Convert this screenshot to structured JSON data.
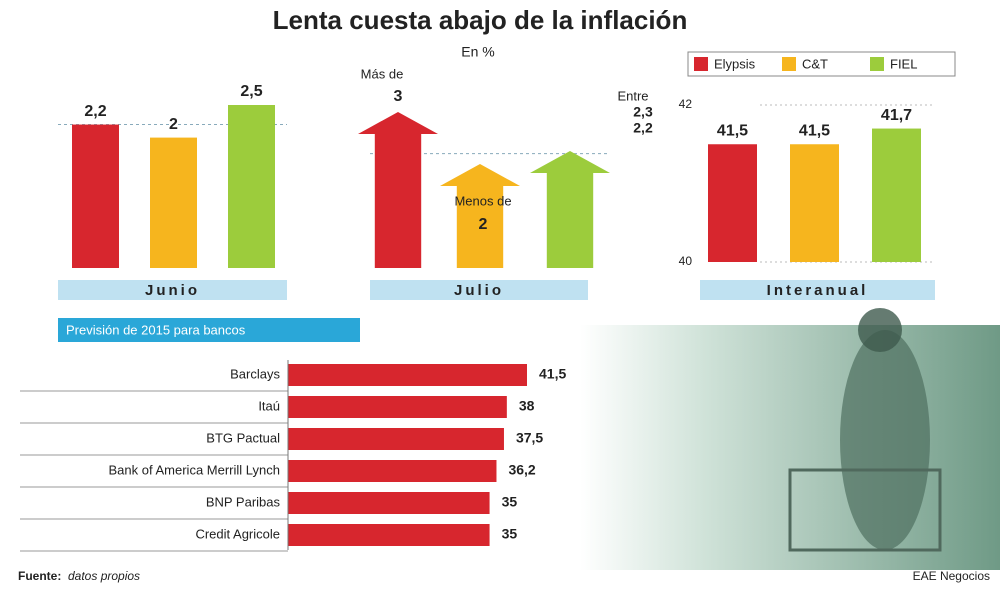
{
  "title": "Lenta cuesta abajo de la inflación",
  "subtitle": "En %",
  "source_label": "Fuente:",
  "source": "datos propios",
  "credit": "EAE Negocios",
  "chart_data": [
    {
      "type": "bar",
      "category": "Junio",
      "ylim": [
        0,
        2.5
      ],
      "reference": 2.2,
      "series": [
        {
          "name": "Elypsis",
          "color": "#d7262e",
          "values": [
            2.2
          ],
          "value_labels": [
            "2,2"
          ]
        },
        {
          "name": "C&T",
          "color": "#f6b51e",
          "values": [
            2
          ],
          "value_labels": [
            "2"
          ]
        },
        {
          "name": "FIEL",
          "color": "#9ccc3c",
          "values": [
            2.5
          ],
          "value_labels": [
            "2,5"
          ]
        }
      ]
    },
    {
      "type": "arrow",
      "category": "Julio",
      "ylim": [
        0,
        3
      ],
      "reference": 2.2,
      "colors": [
        "#d7262e",
        "#f6b51e",
        "#9ccc3c"
      ],
      "values": [
        3,
        2,
        2.25
      ],
      "annotations": [
        "Más de",
        "3",
        "Menos de",
        "2",
        "Entre",
        "2,3",
        "2,2"
      ]
    },
    {
      "type": "bar",
      "category": "Interanual",
      "ylim": [
        40,
        42
      ],
      "yticks": [
        40,
        42
      ],
      "colors": [
        "#d7262e",
        "#f6b51e",
        "#9ccc3c"
      ],
      "values": [
        41.5,
        41.5,
        41.7
      ],
      "value_labels": [
        "41,5",
        "41,5",
        "41,7"
      ]
    },
    {
      "type": "hbar",
      "title": "Previsión de 2015 para bancos",
      "color": "#d7262e",
      "xlim": [
        0,
        41.5
      ],
      "categories": [
        "Barclays",
        "Itaú",
        "BTG Pactual",
        "Bank of America Merrill Lynch",
        "BNP Paribas",
        "Credit Agricole"
      ],
      "values": [
        41.5,
        38,
        37.5,
        36.2,
        35,
        35
      ],
      "value_labels": [
        "41,5",
        "38",
        "37,5",
        "36,2",
        "35",
        "35"
      ]
    }
  ]
}
